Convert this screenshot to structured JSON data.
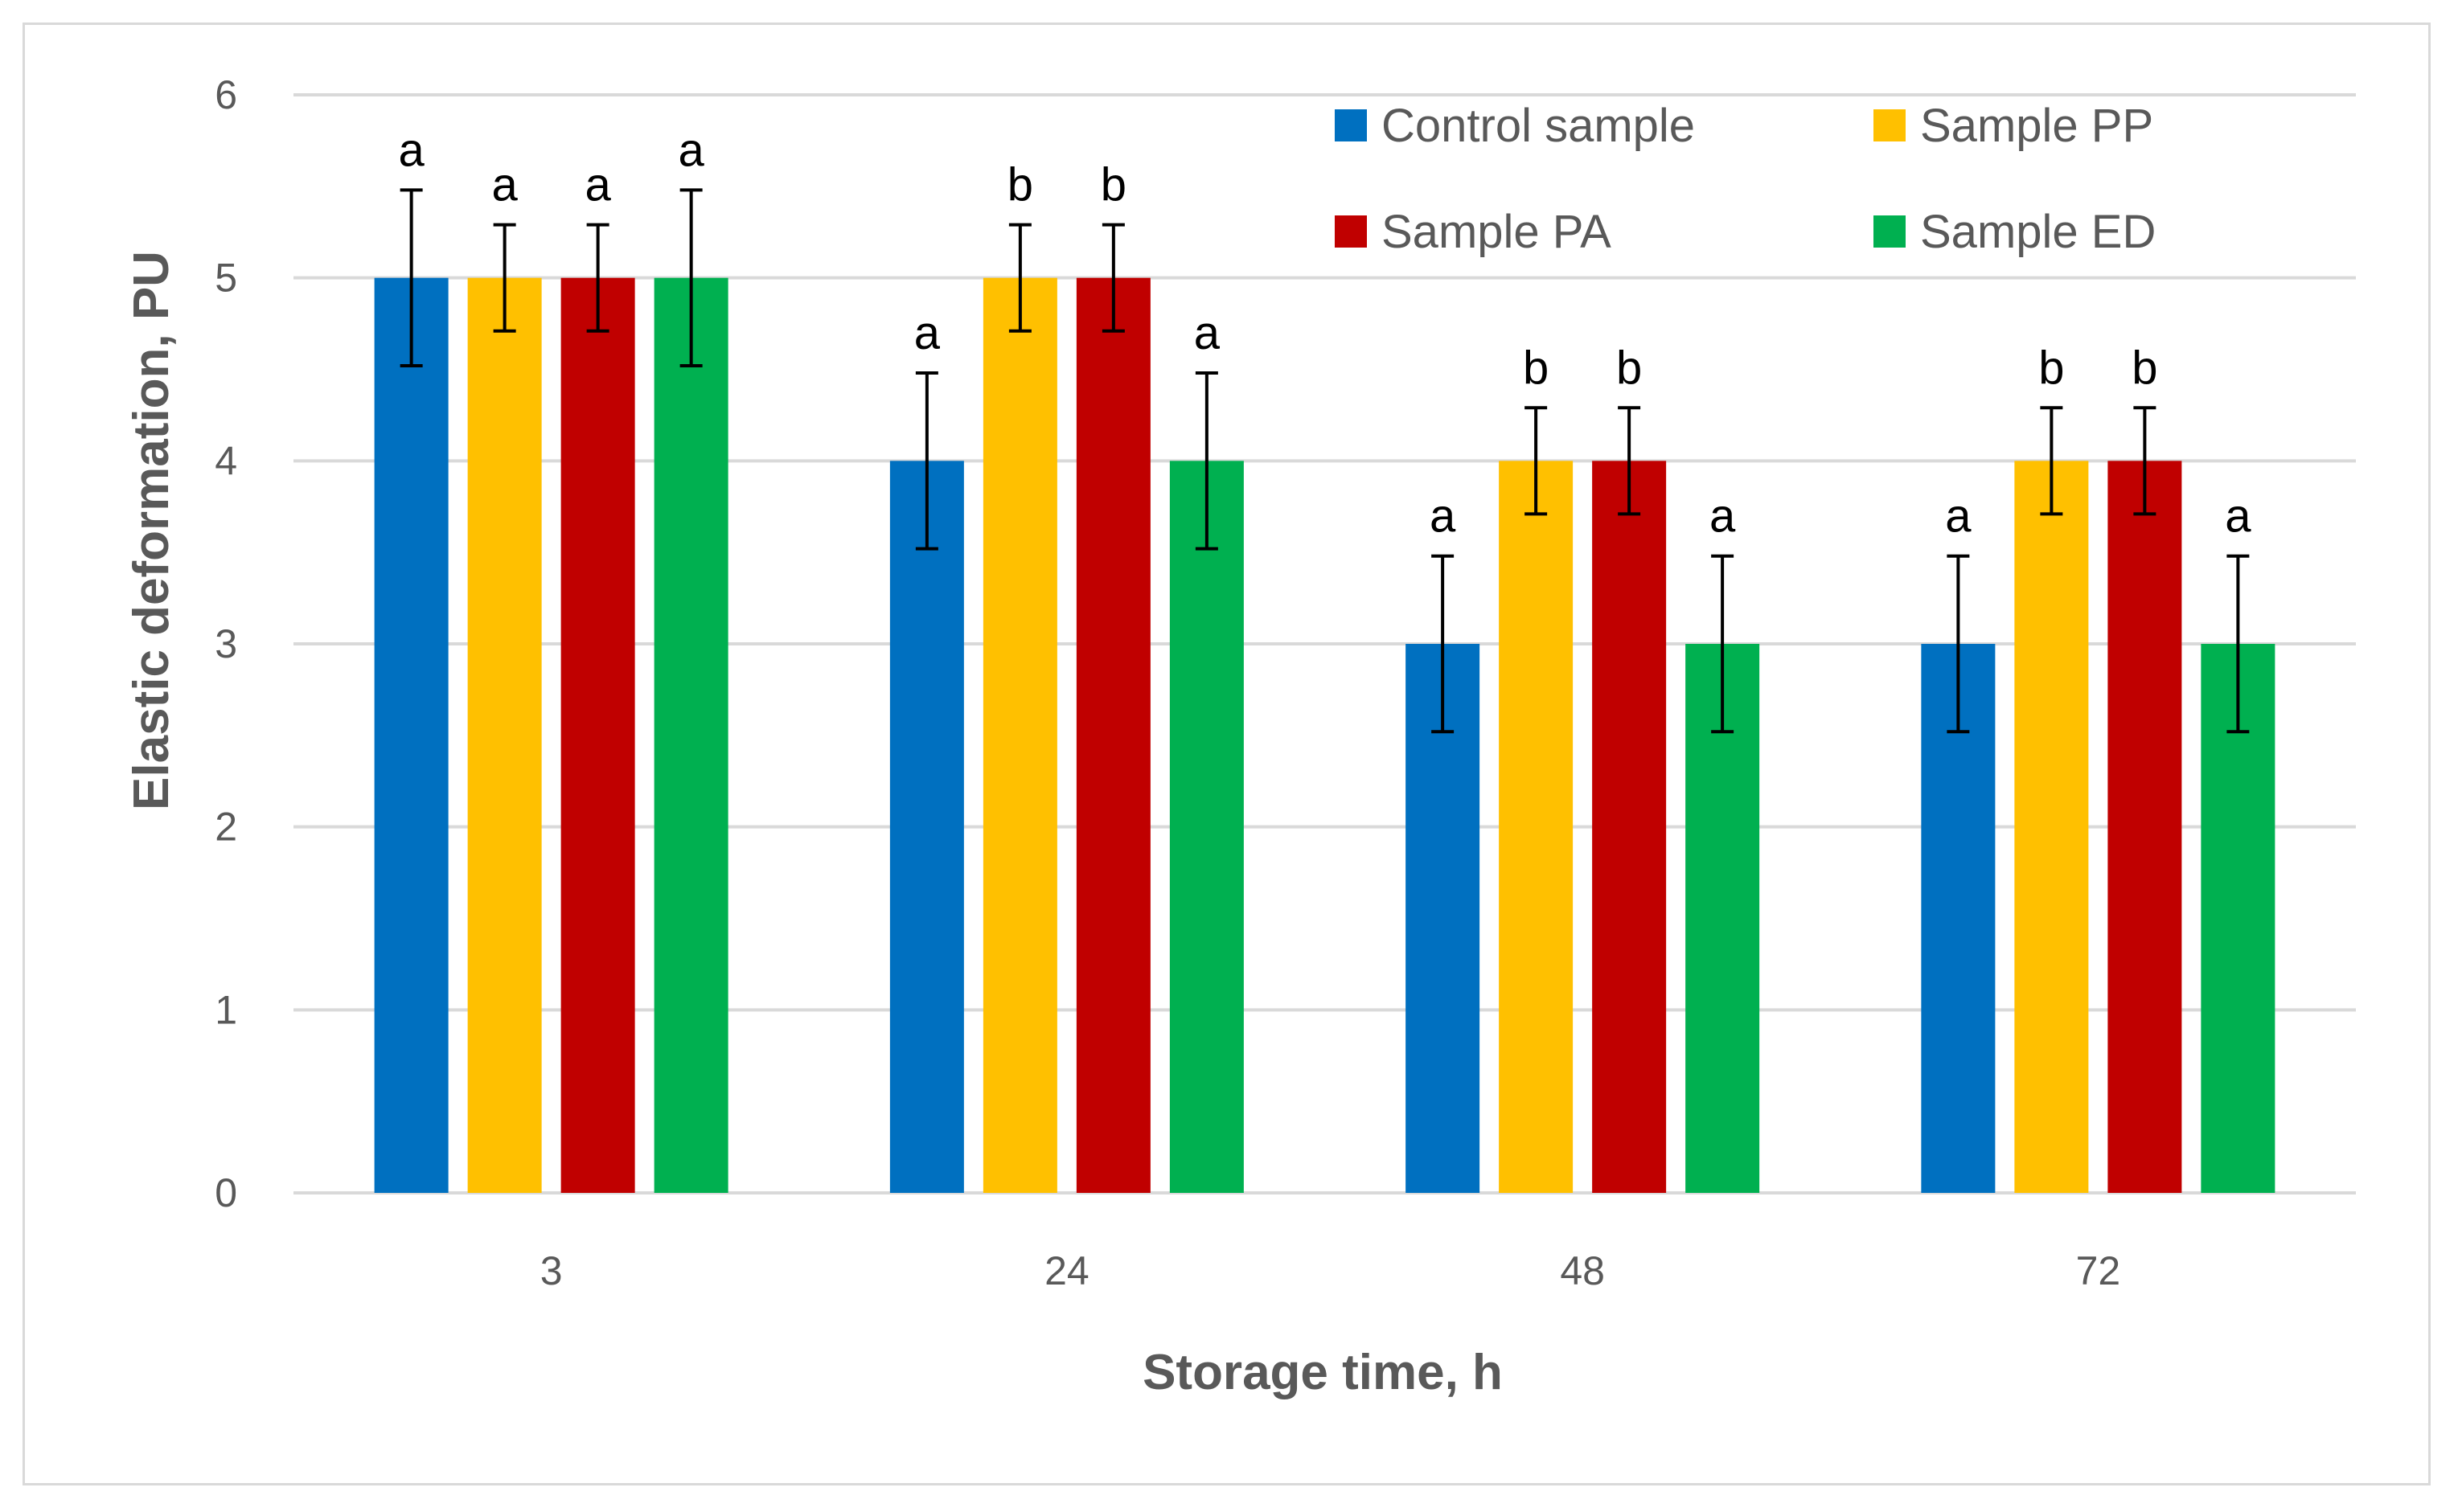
{
  "chart_data": {
    "type": "bar",
    "title": "",
    "xlabel": "Storage time, h",
    "ylabel": "Elastic deformation, PU",
    "categories": [
      "3",
      "24",
      "48",
      "72"
    ],
    "ylim": [
      0,
      6
    ],
    "yticks": [
      "0",
      "1",
      "2",
      "3",
      "4",
      "5",
      "6"
    ],
    "grid": true,
    "legend_position": "top-right",
    "series": [
      {
        "name": "Control sample",
        "color": "#0070C0",
        "values": [
          5,
          4,
          3,
          3
        ],
        "errors": [
          0.48,
          0.48,
          0.48,
          0.48
        ],
        "labels": [
          "a",
          "a",
          "a",
          "a"
        ]
      },
      {
        "name": "Sample PP",
        "color": "#FFC000",
        "values": [
          5,
          5,
          4,
          4
        ],
        "errors": [
          0.29,
          0.29,
          0.29,
          0.29
        ],
        "labels": [
          "a",
          "b",
          "b",
          "b"
        ]
      },
      {
        "name": "Sample PA",
        "color": "#C00000",
        "values": [
          5,
          5,
          4,
          4
        ],
        "errors": [
          0.29,
          0.29,
          0.29,
          0.29
        ],
        "labels": [
          "a",
          "b",
          "b",
          "b"
        ]
      },
      {
        "name": "Sample ED",
        "color": "#00B050",
        "values": [
          5,
          4,
          3,
          3
        ],
        "errors": [
          0.48,
          0.48,
          0.48,
          0.48
        ],
        "labels": [
          "a",
          "a",
          "a",
          "a"
        ]
      }
    ]
  }
}
